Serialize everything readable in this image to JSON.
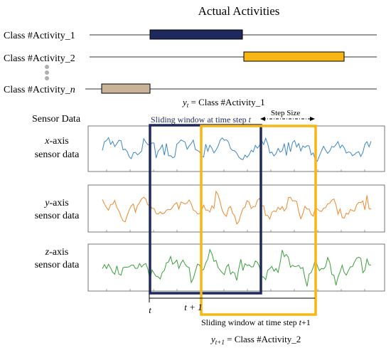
{
  "title": "Actual Activities",
  "activities": [
    {
      "label": "Class #Activity_1",
      "color": "#1f2a5c"
    },
    {
      "label": "Class #Activity_2",
      "color": "#f7b614"
    },
    {
      "label_prefix": "Class #Activity_",
      "label_italic": "n",
      "color": "#c8b298"
    }
  ],
  "yt": {
    "main": "y",
    "sub": "t",
    "text": " = Class #Activity_1"
  },
  "yt1": {
    "main": "y",
    "sub": "t+1",
    "text": " = Class #Activity_2"
  },
  "sensor_data_label": "Sensor Data",
  "window1": {
    "label": "Sliding window at time step ",
    "italic": "t",
    "color": "#1f2a5c"
  },
  "window2": {
    "label": "Sliding window at time step ",
    "italic": "t",
    "suffix": "+1",
    "color": "#f7b614"
  },
  "step_size": "Step Size",
  "sensors": [
    {
      "axis": "x",
      "rest": "-axis",
      "line2": "sensor data",
      "color": "#3d86c6"
    },
    {
      "axis": "y",
      "rest": "-axis",
      "line2": "sensor data",
      "color": "#f0872b"
    },
    {
      "axis": "z",
      "rest": "-axis",
      "line2": "sensor data",
      "color": "#3aa03a"
    }
  ],
  "time_ticks": {
    "t": "t",
    "t1": "t + 1"
  }
}
